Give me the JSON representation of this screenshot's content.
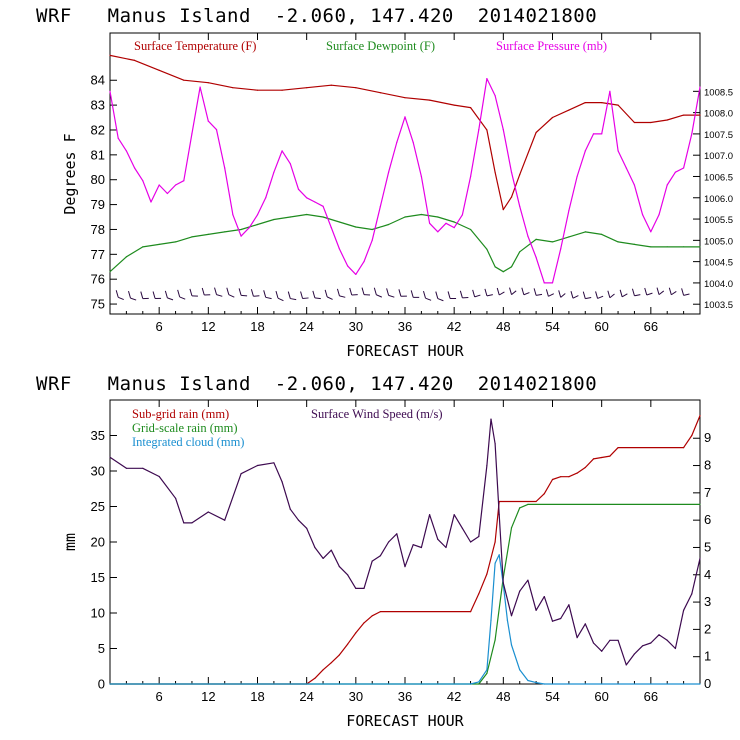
{
  "chart_data": [
    {
      "type": "line",
      "title": "WRF   Manus Island  -2.060, 147.420  2014021800",
      "xlabel": "FORECAST HOUR",
      "ylabel": "Degrees F",
      "xlim": [
        0,
        72
      ],
      "ylim": [
        74.6,
        85.9
      ],
      "y2lim": [
        1003.27,
        1009.87
      ],
      "xticks": [
        "6",
        "12",
        "18",
        "24",
        "30",
        "36",
        "42",
        "48",
        "54",
        "60",
        "66"
      ],
      "yticks": [
        "75",
        "76",
        "77",
        "78",
        "79",
        "80",
        "81",
        "82",
        "83",
        "84"
      ],
      "y2ticks": [
        "1003.5",
        "1004.0",
        "1004.5",
        "1005.0",
        "1005.5",
        "1006.0",
        "1006.5",
        "1007.0",
        "1007.5",
        "1008.0",
        "1008.5"
      ],
      "series": [
        {
          "name": "Surface Temperature (F)",
          "axis": "left",
          "color": "#b00000",
          "x": [
            0,
            3,
            6,
            9,
            12,
            15,
            18,
            21,
            24,
            27,
            30,
            33,
            36,
            39,
            42,
            44,
            46,
            47,
            48,
            49,
            50,
            52,
            54,
            56,
            58,
            60,
            62,
            64,
            66,
            68,
            70,
            72
          ],
          "y": [
            85.0,
            84.8,
            84.4,
            84.0,
            83.9,
            83.7,
            83.6,
            83.6,
            83.7,
            83.8,
            83.7,
            83.5,
            83.3,
            83.2,
            83.0,
            82.9,
            82.0,
            80.3,
            78.8,
            79.3,
            80.2,
            81.9,
            82.5,
            82.8,
            83.1,
            83.1,
            83.0,
            82.3,
            82.3,
            82.4,
            82.6,
            82.6
          ]
        },
        {
          "name": "Surface Dewpoint (F)",
          "axis": "left",
          "color": "#1e8b1e",
          "x": [
            0,
            2,
            4,
            6,
            8,
            10,
            12,
            14,
            16,
            18,
            20,
            22,
            24,
            26,
            28,
            30,
            32,
            34,
            36,
            38,
            40,
            42,
            44,
            46,
            47,
            48,
            49,
            50,
            52,
            54,
            56,
            58,
            60,
            62,
            64,
            66,
            68,
            70,
            72
          ],
          "y": [
            76.3,
            76.9,
            77.3,
            77.4,
            77.5,
            77.7,
            77.8,
            77.9,
            78.0,
            78.2,
            78.4,
            78.5,
            78.6,
            78.5,
            78.3,
            78.1,
            78.0,
            78.2,
            78.5,
            78.6,
            78.5,
            78.3,
            78.0,
            77.2,
            76.5,
            76.3,
            76.5,
            77.1,
            77.6,
            77.5,
            77.7,
            77.9,
            77.8,
            77.5,
            77.4,
            77.3,
            77.3,
            77.3,
            77.3
          ]
        },
        {
          "name": "Surface Pressure (mb)",
          "axis": "right",
          "color": "#e600e6",
          "x": [
            0,
            1,
            2,
            3,
            4,
            5,
            6,
            7,
            8,
            9,
            10,
            11,
            12,
            13,
            14,
            15,
            16,
            17,
            18,
            19,
            20,
            21,
            22,
            23,
            24,
            25,
            26,
            27,
            28,
            29,
            30,
            31,
            32,
            33,
            34,
            35,
            36,
            37,
            38,
            39,
            40,
            41,
            42,
            43,
            44,
            45,
            46,
            47,
            48,
            49,
            50,
            51,
            52,
            53,
            54,
            55,
            56,
            57,
            58,
            59,
            60,
            61,
            62,
            63,
            64,
            65,
            66,
            67,
            68,
            69,
            70,
            71,
            72
          ],
          "y": [
            1008.5,
            1007.4,
            1007.1,
            1006.7,
            1006.4,
            1005.9,
            1006.3,
            1006.1,
            1006.3,
            1006.4,
            1007.5,
            1008.6,
            1007.8,
            1007.6,
            1006.7,
            1005.6,
            1005.1,
            1005.3,
            1005.6,
            1006.0,
            1006.6,
            1007.1,
            1006.8,
            1006.2,
            1006.0,
            1005.9,
            1005.8,
            1005.3,
            1004.8,
            1004.4,
            1004.2,
            1004.5,
            1005.0,
            1005.8,
            1006.6,
            1007.3,
            1007.9,
            1007.3,
            1006.5,
            1005.4,
            1005.2,
            1005.4,
            1005.3,
            1005.6,
            1006.5,
            1007.6,
            1008.8,
            1008.4,
            1007.6,
            1006.6,
            1005.8,
            1005.1,
            1004.6,
            1004.0,
            1004.0,
            1004.8,
            1005.7,
            1006.5,
            1007.1,
            1007.5,
            1007.5,
            1008.5,
            1007.1,
            1006.7,
            1006.3,
            1005.6,
            1005.2,
            1005.6,
            1006.3,
            1006.6,
            1006.7,
            1007.5,
            1008.6
          ]
        }
      ],
      "wind_barbs_present": true,
      "grid": false
    },
    {
      "type": "line",
      "title": "WRF   Manus Island  -2.060, 147.420  2014021800",
      "xlabel": "FORECAST HOUR",
      "ylabel": "mm",
      "xlim": [
        0,
        72
      ],
      "ylim": [
        0,
        40
      ],
      "y2lim": [
        0,
        10.4
      ],
      "xticks": [
        "6",
        "12",
        "18",
        "24",
        "30",
        "36",
        "42",
        "48",
        "54",
        "60",
        "66"
      ],
      "yticks": [
        "0",
        "5",
        "10",
        "15",
        "20",
        "25",
        "30",
        "35"
      ],
      "y2ticks": [
        "0",
        "1",
        "2",
        "3",
        "4",
        "5",
        "6",
        "7",
        "8",
        "9"
      ],
      "series": [
        {
          "name": "Sub-grid rain (mm)",
          "axis": "left",
          "color": "#b00000",
          "x": [
            0,
            24,
            25,
            26,
            27,
            28,
            29,
            30,
            31,
            32,
            33,
            44,
            45,
            46,
            47,
            47.5,
            52,
            53,
            54,
            55,
            56,
            57,
            58,
            59,
            60,
            61,
            62,
            70,
            71,
            72
          ],
          "y": [
            0,
            0,
            0.8,
            2.0,
            3.0,
            4.1,
            5.6,
            7.2,
            8.6,
            9.6,
            10.2,
            10.2,
            12.7,
            15.5,
            20.0,
            25.7,
            25.7,
            26.8,
            28.8,
            29.2,
            29.2,
            29.7,
            30.5,
            31.7,
            31.9,
            32.1,
            33.3,
            33.3,
            35.0,
            37.8
          ]
        },
        {
          "name": "Grid-scale rain (mm)",
          "axis": "left",
          "color": "#1e8b1e",
          "x": [
            0,
            45,
            46,
            47,
            48,
            49,
            50,
            51,
            72
          ],
          "y": [
            0,
            0,
            1.5,
            6.2,
            15.0,
            22.0,
            24.8,
            25.3,
            25.3
          ]
        },
        {
          "name": "Integrated cloud (mm)",
          "axis": "left",
          "color": "#1a8fd0",
          "x": [
            0,
            44,
            45,
            46,
            46.5,
            47,
            47.5,
            48,
            48.5,
            49,
            50,
            51,
            52,
            53,
            72
          ],
          "y": [
            0,
            0,
            0.3,
            2.0,
            9.0,
            17.0,
            18.2,
            14.0,
            9.0,
            5.5,
            2.0,
            0.5,
            0.2,
            0,
            0
          ]
        },
        {
          "name": "Surface Wind Speed (m/s)",
          "axis": "right",
          "color": "#3d0a50",
          "x": [
            0,
            2,
            4,
            6,
            8,
            9,
            10,
            12,
            14,
            16,
            18,
            20,
            21,
            22,
            23,
            24,
            25,
            26,
            27,
            28,
            29,
            30,
            31,
            32,
            33,
            34,
            35,
            36,
            37,
            38,
            39,
            40,
            41,
            42,
            43,
            44,
            45,
            46,
            46.5,
            47,
            47.5,
            48,
            49,
            50,
            51,
            52,
            53,
            54,
            55,
            56,
            57,
            58,
            59,
            60,
            61,
            62,
            63,
            64,
            65,
            66,
            67,
            68,
            69,
            70,
            71,
            72
          ],
          "y": [
            8.3,
            7.9,
            7.9,
            7.6,
            6.8,
            5.9,
            5.9,
            6.3,
            6.0,
            7.7,
            8.0,
            8.1,
            7.4,
            6.4,
            6.0,
            5.7,
            5.0,
            4.6,
            4.9,
            4.3,
            4.0,
            3.5,
            3.5,
            4.5,
            4.7,
            5.2,
            5.5,
            4.3,
            5.1,
            5.0,
            6.2,
            5.3,
            5.0,
            6.2,
            5.7,
            5.2,
            5.4,
            8.0,
            9.7,
            8.8,
            6.2,
            3.7,
            2.5,
            3.4,
            3.8,
            2.7,
            3.2,
            2.3,
            2.4,
            2.9,
            1.7,
            2.2,
            1.5,
            1.2,
            1.6,
            1.6,
            0.7,
            1.1,
            1.4,
            1.5,
            1.8,
            1.6,
            1.3,
            2.7,
            3.3,
            4.6
          ]
        }
      ],
      "grid": false
    }
  ]
}
